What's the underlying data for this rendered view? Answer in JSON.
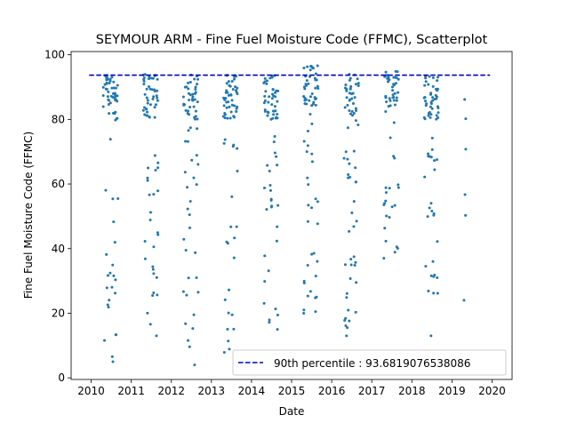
{
  "chart_data": {
    "type": "scatter",
    "title": "SEYMOUR ARM - Fine Fuel Moisture Code (FFMC), Scatterplot",
    "xlabel": "Date",
    "ylabel": "Fine Fuel Moisture Code (FFMC)",
    "xlim": [
      2009.5,
      2020.5
    ],
    "ylim": [
      -0.5,
      101
    ],
    "x_ticks": [
      "2010",
      "2011",
      "2012",
      "2013",
      "2014",
      "2015",
      "2016",
      "2017",
      "2018",
      "2019",
      "2020"
    ],
    "y_ticks": [
      0,
      20,
      40,
      60,
      80,
      100
    ],
    "grid": false,
    "legend_position": "lower-right",
    "point_color": "#1f77b4",
    "reference_line": {
      "label": "90th percentile : 93.6819076538086",
      "value": 93.6819076538086,
      "color": "#0000cc",
      "style": "dashed"
    },
    "seasons": [
      {
        "year": 2010,
        "x_range": [
          2010.3,
          2010.67
        ],
        "n": 70,
        "min": 5,
        "high_band": [
          80,
          94
        ]
      },
      {
        "year": 2011,
        "x_range": [
          2011.3,
          2011.67
        ],
        "n": 70,
        "min": 13,
        "high_band": [
          80,
          94
        ]
      },
      {
        "year": 2012,
        "x_range": [
          2012.3,
          2012.67
        ],
        "n": 70,
        "min": 4,
        "high_band": [
          80,
          94
        ]
      },
      {
        "year": 2013,
        "x_range": [
          2013.3,
          2013.67
        ],
        "n": 70,
        "min": 7,
        "high_band": [
          80,
          94
        ]
      },
      {
        "year": 2014,
        "x_range": [
          2014.3,
          2014.67
        ],
        "n": 70,
        "min": 15,
        "high_band": [
          80,
          94
        ]
      },
      {
        "year": 2015,
        "x_range": [
          2015.3,
          2015.67
        ],
        "n": 70,
        "min": 20,
        "high_band": [
          84,
          97
        ]
      },
      {
        "year": 2016,
        "x_range": [
          2016.3,
          2016.67
        ],
        "n": 70,
        "min": 13,
        "high_band": [
          80,
          94
        ]
      },
      {
        "year": 2017,
        "x_range": [
          2017.3,
          2017.67
        ],
        "n": 60,
        "min": 37,
        "high_band": [
          84,
          95
        ]
      },
      {
        "year": 2018,
        "x_range": [
          2018.3,
          2018.67
        ],
        "n": 70,
        "min": 13,
        "high_band": [
          80,
          94
        ]
      },
      {
        "year": 2019,
        "x_range": [
          2019.3,
          2019.35
        ],
        "n": 6,
        "min": 24,
        "high_band": [
          56,
          87
        ]
      }
    ]
  }
}
